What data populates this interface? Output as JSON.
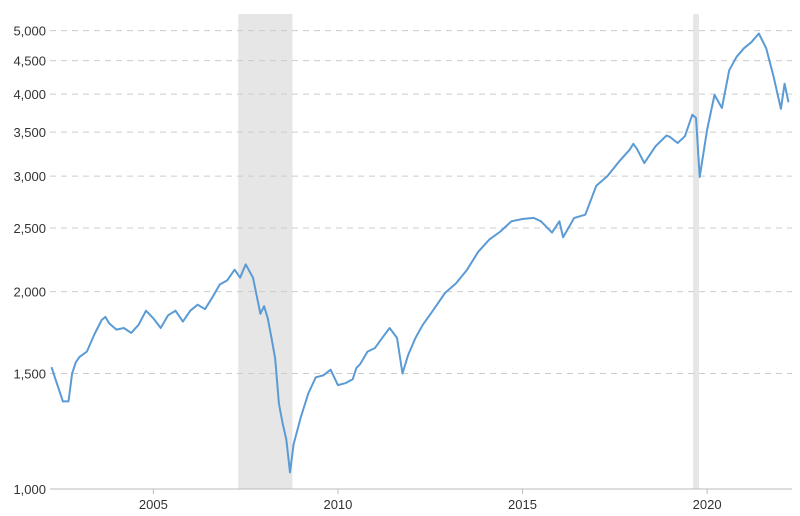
{
  "chart_data": {
    "type": "line",
    "title": "",
    "xlabel": "",
    "ylabel": "",
    "y_scale": "log",
    "ylim": [
      1000,
      5300
    ],
    "xlim": [
      2002.2,
      2022.3
    ],
    "grid": true,
    "y_ticks": [
      1000,
      1500,
      2000,
      2500,
      3000,
      3500,
      4000,
      4500,
      5000
    ],
    "y_tick_labels": [
      "1,000",
      "1,500",
      "2,000",
      "2,500",
      "3,000",
      "3,500",
      "4,000",
      "4,500",
      "5,000"
    ],
    "x_ticks": [
      2005,
      2010,
      2015,
      2020
    ],
    "x_tick_labels": [
      "2005",
      "2010",
      "2015",
      "2020"
    ],
    "colors": {
      "line": "#5b9bd5",
      "shade": "#e6e6e6",
      "grid": "#cccccc"
    },
    "shaded_regions": [
      {
        "start": 2007.3,
        "end": 2008.77
      },
      {
        "start": 2019.62,
        "end": 2019.78
      }
    ],
    "series": [
      {
        "x": [
          2002.25,
          2002.35,
          2002.55,
          2002.7,
          2002.8,
          2002.9,
          2003.0,
          2003.2,
          2003.4,
          2003.6,
          2003.7,
          2003.8,
          2004.0,
          2004.2,
          2004.4,
          2004.6,
          2004.8,
          2005.0,
          2005.2,
          2005.4,
          2005.6,
          2005.8,
          2006.0,
          2006.2,
          2006.4,
          2006.6,
          2006.8,
          2007.0,
          2007.2,
          2007.35,
          2007.5,
          2007.7,
          2007.9,
          2008.0,
          2008.1,
          2008.2,
          2008.3,
          2008.4,
          2008.5,
          2008.6,
          2008.7,
          2008.8,
          2009.0,
          2009.2,
          2009.4,
          2009.6,
          2009.8,
          2010.0,
          2010.2,
          2010.4,
          2010.5,
          2010.6,
          2010.8,
          2011.0,
          2011.2,
          2011.4,
          2011.6,
          2011.75,
          2011.9,
          2012.1,
          2012.3,
          2012.6,
          2012.9,
          2013.2,
          2013.5,
          2013.8,
          2014.1,
          2014.4,
          2014.7,
          2015.0,
          2015.3,
          2015.5,
          2015.65,
          2015.8,
          2016.0,
          2016.1,
          2016.4,
          2016.7,
          2017.0,
          2017.3,
          2017.6,
          2017.9,
          2018.0,
          2018.1,
          2018.3,
          2018.6,
          2018.9,
          2019.0,
          2019.2,
          2019.4,
          2019.6,
          2019.7,
          2019.8,
          2020.0,
          2020.2,
          2020.4,
          2020.6,
          2020.8,
          2021.0,
          2021.2,
          2021.4,
          2021.6,
          2021.8,
          2022.0,
          2022.1,
          2022.2
        ],
        "values": [
          1530,
          1470,
          1360,
          1360,
          1500,
          1560,
          1590,
          1620,
          1720,
          1810,
          1830,
          1790,
          1750,
          1760,
          1730,
          1780,
          1870,
          1820,
          1760,
          1840,
          1870,
          1800,
          1870,
          1910,
          1880,
          1960,
          2050,
          2080,
          2160,
          2100,
          2200,
          2100,
          1850,
          1900,
          1820,
          1700,
          1580,
          1350,
          1260,
          1190,
          1060,
          1170,
          1290,
          1400,
          1480,
          1490,
          1520,
          1440,
          1450,
          1470,
          1530,
          1550,
          1620,
          1640,
          1700,
          1760,
          1700,
          1500,
          1600,
          1700,
          1780,
          1880,
          1990,
          2060,
          2160,
          2300,
          2400,
          2470,
          2560,
          2580,
          2590,
          2560,
          2510,
          2460,
          2560,
          2420,
          2590,
          2620,
          2900,
          3000,
          3150,
          3290,
          3360,
          3300,
          3140,
          3330,
          3460,
          3440,
          3370,
          3450,
          3720,
          3680,
          2990,
          3530,
          3990,
          3810,
          4350,
          4560,
          4700,
          4800,
          4950,
          4700,
          4260,
          3800,
          4150,
          3900
        ]
      }
    ]
  }
}
